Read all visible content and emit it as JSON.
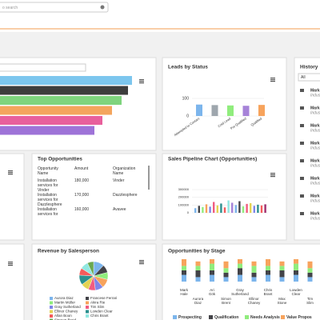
{
  "search": {
    "placeholder": "o search"
  },
  "funnel": {
    "values": [
      165,
      160,
      152,
      140,
      128,
      118
    ],
    "colors": [
      "#7cc6ee",
      "#3d3d3d",
      "#7fd47e",
      "#f4a55d",
      "#e8609c",
      "#9e73d8"
    ]
  },
  "leads_by_status": {
    "title": "Leads by Status",
    "categories": [
      "Attempted to Contact",
      null,
      "Cold Lead",
      "Pre Qualified",
      "Qualified"
    ],
    "values": [
      65,
      62,
      60,
      58,
      63
    ],
    "colors": [
      "#7cb5ec",
      "#9ea6ad",
      "#90ed7d",
      "#a682d8",
      "#f7a35c"
    ],
    "ylim": [
      0,
      150
    ],
    "yticks": [
      0,
      100
    ]
  },
  "history": {
    "title": "History",
    "filter": "All",
    "items": [
      {
        "name": "Mark",
        "detail": "Indus"
      },
      {
        "name": "Mark",
        "detail": "Indus"
      },
      {
        "name": "Mark",
        "detail": "Indus"
      },
      {
        "name": "Mark",
        "detail": "Indus"
      },
      {
        "name": "Mark",
        "detail": "Indus"
      },
      {
        "name": "Mark",
        "detail": "Indus"
      },
      {
        "name": "Mark",
        "detail": "Indus"
      },
      {
        "name": "Mark",
        "detail": "Indus"
      }
    ]
  },
  "top_opportunities": {
    "title": "Top Opportunities",
    "columns": [
      "Opportunity Name",
      "Amount",
      "Organization Name"
    ],
    "rows": [
      [
        "Installation services for Vinder",
        "180,000",
        "Vinder"
      ],
      [
        "Installation services for Dazzlesphere",
        "170,000",
        "Dazzlesphere"
      ],
      [
        "Installation services for",
        "160,000",
        "Avavee"
      ]
    ]
  },
  "sales_pipeline": {
    "title": "Sales Pipeline Chart (Opportunities)",
    "values": [
      60000,
      90000,
      75000,
      110000,
      80000,
      140000,
      95000,
      120000,
      70000,
      160000,
      130000,
      100000,
      150000,
      85000,
      115000,
      125000,
      90000,
      105000,
      95000,
      110000
    ],
    "colors": [
      "#7cb5ec",
      "#434348",
      "#90ed7d",
      "#f7a35c",
      "#8085e9",
      "#f15c80",
      "#e4d354",
      "#2b908f",
      "#f45b5b",
      "#91e8e1",
      "#a682d8",
      "#7cb5ec",
      "#434348",
      "#90ed7d",
      "#f15c80",
      "#e4d354",
      "#8085e9",
      "#2b908f",
      "#f45b5b",
      "#a0306f"
    ],
    "ylim": [
      0,
      300000
    ],
    "yticks": [
      0,
      100000,
      200000,
      300000
    ]
  },
  "revenue_by_salesperson": {
    "title": "Revenue by Salesperson",
    "series": [
      {
        "name": "Aurora Diaz",
        "color": "#7cb5ec",
        "value": 12
      },
      {
        "name": "Francese Ferrari",
        "color": "#434348",
        "value": 9
      },
      {
        "name": "Martin Müller",
        "color": "#90ed7d",
        "value": 8
      },
      {
        "name": "Akira Rie",
        "color": "#f7a35c",
        "value": 10
      },
      {
        "name": "Gray Sutherland",
        "color": "#8085e9",
        "value": 9
      },
      {
        "name": "Tim Slim",
        "color": "#f15c80",
        "value": 8
      },
      {
        "name": "Ellinor Chaney",
        "color": "#e4d354",
        "value": 9
      },
      {
        "name": "Lowden Clear",
        "color": "#2b908f",
        "value": 11
      },
      {
        "name": "Allan Boon",
        "color": "#f45b5b",
        "value": 8
      },
      {
        "name": "Chris Brant",
        "color": "#91e8e1",
        "value": 9
      },
      {
        "name": "Simeon Braid",
        "color": "#6aa84f",
        "value": 7
      }
    ]
  },
  "opportunities_by_stage": {
    "title": "Opportunities by Stage",
    "categories": [
      "Mark Hale",
      "Aurora Diaz",
      "Ari Gök",
      "Simon Brent",
      "Gray Sutherland",
      "Ellinor Chaney",
      "Chris Brant",
      "Max Stone",
      "Lowden Clear",
      "Tim Slim"
    ],
    "series": [
      {
        "name": "Prospecting",
        "color": "#7cb5ec",
        "values": [
          3,
          2,
          3,
          2,
          3,
          2,
          3,
          2,
          3,
          2
        ]
      },
      {
        "name": "Qualification",
        "color": "#434348",
        "values": [
          2,
          3,
          2,
          2,
          3,
          2,
          2,
          3,
          2,
          2
        ]
      },
      {
        "name": "Needs Analysis",
        "color": "#90ed7d",
        "values": [
          2,
          2,
          3,
          2,
          2,
          3,
          2,
          2,
          3,
          2
        ]
      },
      {
        "name": "Value Propos",
        "color": "#f7a35c",
        "values": [
          3,
          2,
          2,
          3,
          2,
          2,
          3,
          2,
          2,
          3
        ]
      }
    ]
  }
}
